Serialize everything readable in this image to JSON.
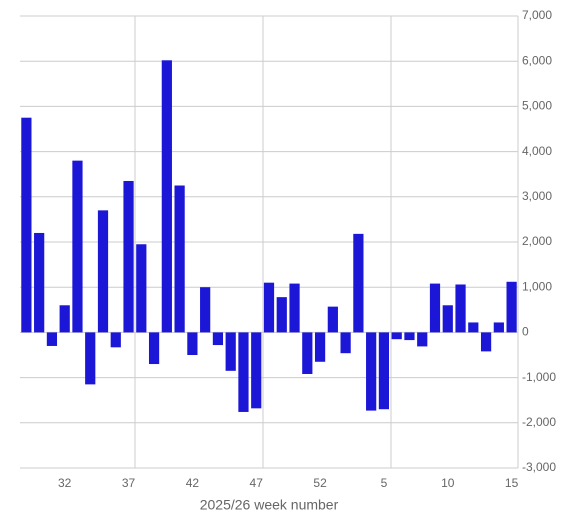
{
  "chart_data": {
    "type": "bar",
    "x_label": "2025/26 week number",
    "categories": [
      null,
      null,
      null,
      "32",
      null,
      null,
      null,
      null,
      "37",
      null,
      null,
      null,
      null,
      "42",
      null,
      null,
      null,
      null,
      "47",
      null,
      null,
      null,
      null,
      "52",
      null,
      null,
      null,
      null,
      "5",
      null,
      null,
      null,
      null,
      "10",
      null,
      null,
      null,
      null,
      "15"
    ],
    "values": [
      4750,
      2200,
      -300,
      600,
      3800,
      -1150,
      2700,
      -330,
      3350,
      1950,
      -700,
      6020,
      3250,
      -500,
      1000,
      -280,
      -850,
      -1760,
      -1680,
      1100,
      780,
      1080,
      -920,
      -650,
      570,
      -460,
      2180,
      -1730,
      -1700,
      -150,
      -170,
      -310,
      1080,
      600,
      1060,
      220,
      -420,
      220,
      1120
    ],
    "color": "#1c17d6",
    "ylim": [
      -3000,
      7000
    ],
    "yticks": [
      {
        "value": -3000,
        "label": "-3,000"
      },
      {
        "value": -2000,
        "label": "-2,000"
      },
      {
        "value": -1000,
        "label": "-1,000"
      },
      0,
      {
        "value": 1000,
        "label": "1,000"
      },
      {
        "value": 2000,
        "label": "2,000"
      },
      {
        "value": 3000,
        "label": "3,000"
      },
      {
        "value": 4000,
        "label": "4,000"
      },
      {
        "value": 5000,
        "label": "5,000"
      },
      {
        "value": 6000,
        "label": "6,000"
      },
      {
        "value": 7000,
        "label": "7,000"
      }
    ],
    "grid": true
  }
}
